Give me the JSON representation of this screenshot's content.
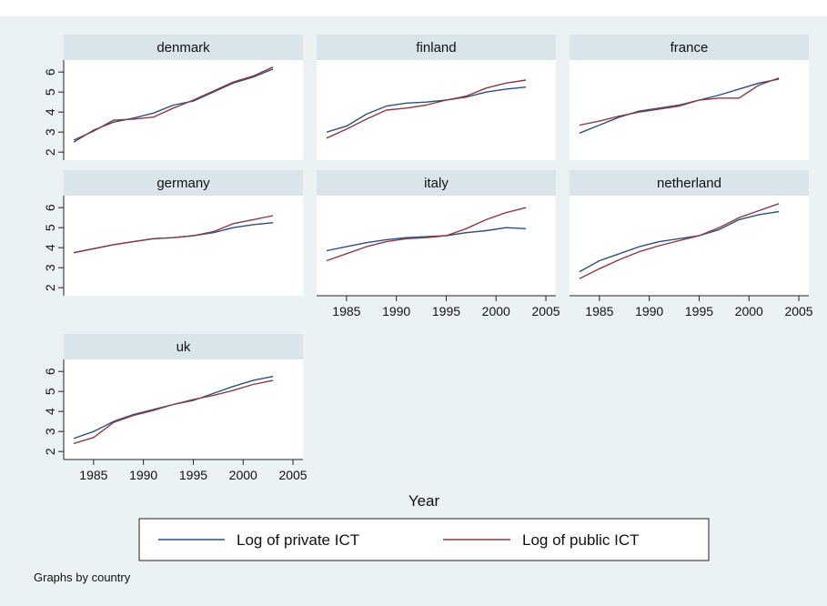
{
  "colors": {
    "background": "#eaf2f3",
    "panel_bg": "#ffffff",
    "panel_header": "#d9e5ea",
    "private_line": "#2d4f7c",
    "public_line": "#8b3a45"
  },
  "chart_data": {
    "type": "line",
    "layout": "small-multiples",
    "xlabel": "Year",
    "x_ticks": [
      1985,
      1990,
      1995,
      2000,
      2005
    ],
    "y_ticks": [
      2,
      3,
      4,
      5,
      6
    ],
    "xlim": [
      1982,
      2006
    ],
    "ylim": [
      1.6,
      6.6
    ],
    "grid": false,
    "legend_position": "bottom",
    "note": "Graphs by country",
    "x": [
      1983,
      1985,
      1987,
      1989,
      1991,
      1993,
      1995,
      1997,
      1999,
      2001,
      2003
    ],
    "series_names": [
      "Log of private ICT",
      "Log of public ICT"
    ],
    "panels": [
      {
        "name": "denmark",
        "series": [
          {
            "name": "Log of private ICT",
            "values": [
              2.5,
              3.1,
              3.5,
              3.7,
              3.95,
              4.35,
              4.55,
              5.0,
              5.45,
              5.75,
              6.15
            ]
          },
          {
            "name": "Log of public ICT",
            "values": [
              2.6,
              3.05,
              3.6,
              3.65,
              3.75,
              4.2,
              4.6,
              5.05,
              5.5,
              5.8,
              6.25
            ]
          }
        ]
      },
      {
        "name": "finland",
        "series": [
          {
            "name": "Log of private ICT",
            "values": [
              3.0,
              3.3,
              3.9,
              4.3,
              4.45,
              4.5,
              4.6,
              4.75,
              5.0,
              5.15,
              5.25
            ]
          },
          {
            "name": "Log of public ICT",
            "values": [
              2.7,
              3.15,
              3.65,
              4.1,
              4.2,
              4.35,
              4.6,
              4.8,
              5.2,
              5.45,
              5.6
            ]
          }
        ]
      },
      {
        "name": "france",
        "series": [
          {
            "name": "Log of private ICT",
            "values": [
              2.95,
              3.35,
              3.75,
              4.05,
              4.2,
              4.35,
              4.6,
              4.85,
              5.15,
              5.45,
              5.65
            ]
          },
          {
            "name": "Log of public ICT",
            "values": [
              3.35,
              3.55,
              3.8,
              4.0,
              4.15,
              4.3,
              4.6,
              4.7,
              4.7,
              5.35,
              5.7
            ]
          }
        ]
      },
      {
        "name": "germany",
        "series": [
          {
            "name": "Log of private ICT",
            "values": [
              3.75,
              3.95,
              4.15,
              4.3,
              4.45,
              4.5,
              4.6,
              4.75,
              5.0,
              5.15,
              5.25
            ]
          },
          {
            "name": "Log of public ICT",
            "values": [
              3.75,
              3.95,
              4.15,
              4.3,
              4.45,
              4.5,
              4.6,
              4.8,
              5.2,
              5.4,
              5.6
            ]
          }
        ]
      },
      {
        "name": "italy",
        "series": [
          {
            "name": "Log of private ICT",
            "values": [
              3.85,
              4.05,
              4.25,
              4.4,
              4.5,
              4.55,
              4.6,
              4.75,
              4.85,
              5.0,
              4.95
            ]
          },
          {
            "name": "Log of public ICT",
            "values": [
              3.35,
              3.7,
              4.05,
              4.3,
              4.45,
              4.5,
              4.6,
              4.95,
              5.4,
              5.75,
              6.0
            ]
          }
        ]
      },
      {
        "name": "netherland",
        "series": [
          {
            "name": "Log of private ICT",
            "values": [
              2.8,
              3.35,
              3.7,
              4.05,
              4.3,
              4.45,
              4.6,
              4.9,
              5.4,
              5.65,
              5.8
            ]
          },
          {
            "name": "Log of public ICT",
            "values": [
              2.45,
              2.95,
              3.4,
              3.8,
              4.1,
              4.35,
              4.6,
              5.0,
              5.5,
              5.85,
              6.2
            ]
          }
        ]
      },
      {
        "name": "uk",
        "series": [
          {
            "name": "Log of private ICT",
            "values": [
              2.65,
              3.0,
              3.5,
              3.85,
              4.1,
              4.35,
              4.55,
              4.9,
              5.25,
              5.55,
              5.75
            ]
          },
          {
            "name": "Log of public ICT",
            "values": [
              2.4,
              2.7,
              3.45,
              3.8,
              4.05,
              4.35,
              4.6,
              4.8,
              5.05,
              5.35,
              5.55
            ]
          }
        ]
      }
    ]
  }
}
